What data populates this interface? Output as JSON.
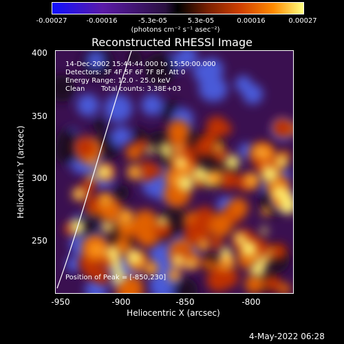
{
  "colorbar": {
    "ticks": [
      "-0.00027",
      "-0.00016",
      "-5.3e-05",
      "5.3e-05",
      "0.00016",
      "0.00027"
    ],
    "unit": "(photons cm⁻² s⁻¹ asec⁻²)"
  },
  "title": "Reconstructed RHESSI Image",
  "info": {
    "time": "14-Dec-2002 15:44:44.000 to 15:50:00.000",
    "detectors": "Detectors: 3F 4F 5F 6F 7F 8F, Att 0",
    "energy": "Energy Range: 12.0 - 25.0 keV",
    "clean": "Clean",
    "counts": "Total counts: 3.38E+03",
    "peak": "Position of Peak = [-850,230]"
  },
  "axes": {
    "xlabel": "Heliocentric X (arcsec)",
    "ylabel": "Heliocentric Y (arcsec)",
    "xticks": [
      "-950",
      "-900",
      "-850",
      "-800"
    ],
    "yticks": [
      "400",
      "350",
      "300",
      "250"
    ]
  },
  "footer": {
    "date": "4-May-2022 06:28"
  }
}
